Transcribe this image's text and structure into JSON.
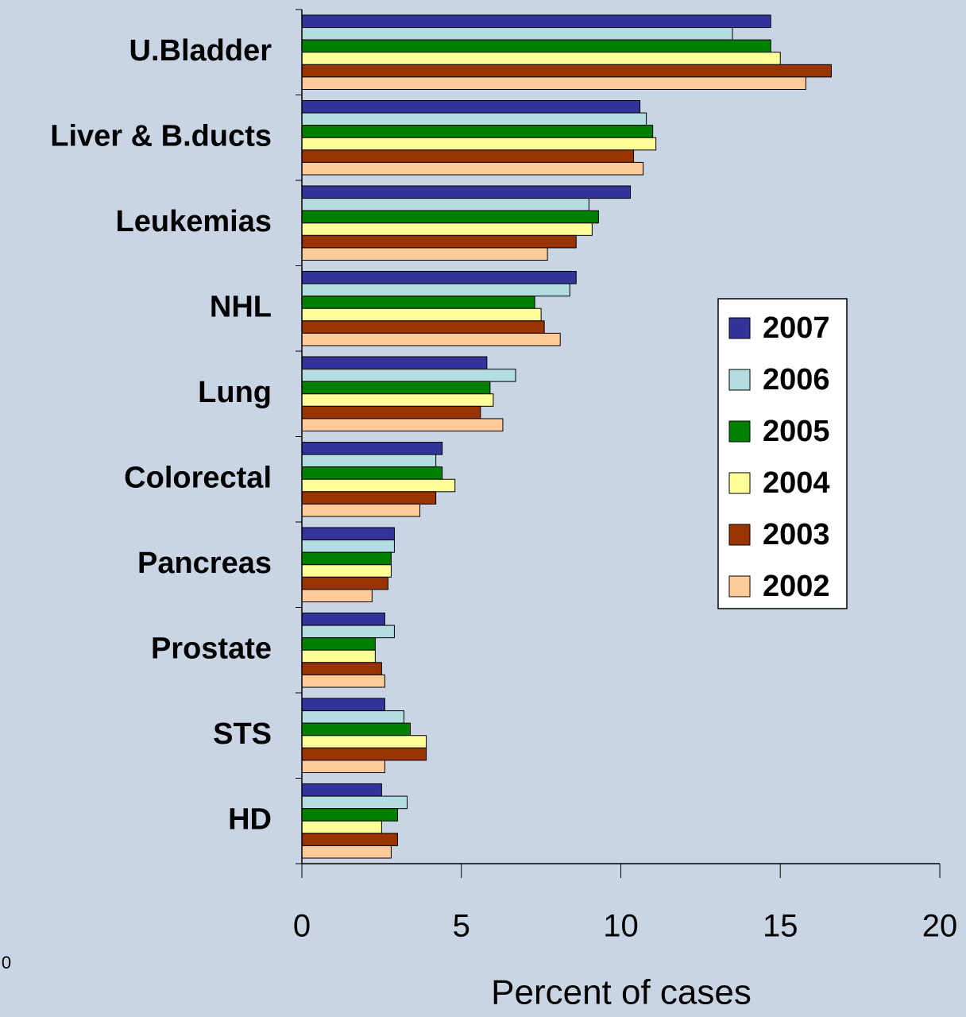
{
  "chart_data": {
    "type": "barh",
    "xlabel": "Percent of cases",
    "annotation": "0",
    "categories": [
      "U.Bladder",
      "Liver & B.ducts",
      "Leukemias",
      "NHL",
      "Lung",
      "Colorectal",
      "Pancreas",
      "Prostate",
      "STS",
      "HD"
    ],
    "series": [
      {
        "name": "2007",
        "color": "#333399",
        "values": [
          14.7,
          10.6,
          10.3,
          8.6,
          5.8,
          4.4,
          2.9,
          2.6,
          2.6,
          2.5
        ]
      },
      {
        "name": "2006",
        "color": "#b3dde0",
        "values": [
          13.5,
          10.8,
          9.0,
          8.4,
          6.7,
          4.2,
          2.9,
          2.9,
          3.2,
          3.3
        ]
      },
      {
        "name": "2005",
        "color": "#008000",
        "values": [
          14.7,
          11.0,
          9.3,
          7.3,
          5.9,
          4.4,
          2.8,
          2.3,
          3.4,
          3.0
        ]
      },
      {
        "name": "2004",
        "color": "#ffff99",
        "values": [
          15.0,
          11.1,
          9.1,
          7.5,
          6.0,
          4.8,
          2.8,
          2.3,
          3.9,
          2.5
        ]
      },
      {
        "name": "2003",
        "color": "#993300",
        "values": [
          16.6,
          10.4,
          8.6,
          7.6,
          5.6,
          4.2,
          2.7,
          2.5,
          3.9,
          3.0
        ]
      },
      {
        "name": "2002",
        "color": "#ffcc99",
        "values": [
          15.8,
          10.7,
          7.7,
          8.1,
          6.3,
          3.7,
          2.2,
          2.6,
          2.6,
          2.8
        ]
      }
    ],
    "xlim": [
      0,
      20
    ],
    "xticks": [
      0,
      5,
      10,
      15,
      20
    ],
    "legend": "right"
  }
}
